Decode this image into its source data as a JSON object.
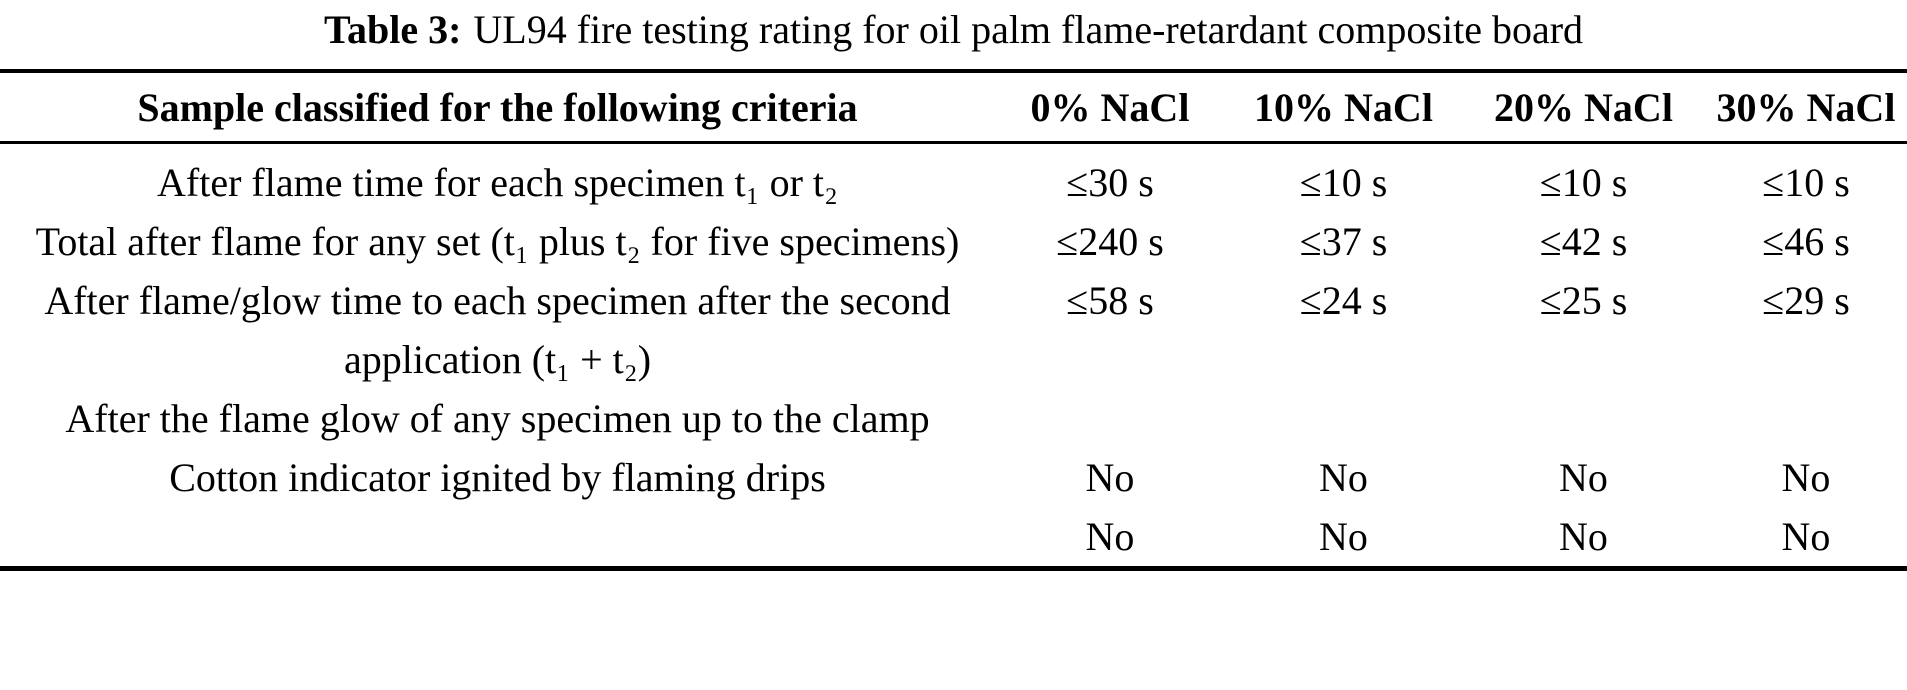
{
  "caption": {
    "label": "Table 3:",
    "text": "UL94 fire testing rating for oil palm flame-retardant composite board"
  },
  "table": {
    "columns": [
      "Sample classified for the following criteria",
      "0% NaCl",
      "10% NaCl",
      "20% NaCl",
      "30% NaCl"
    ],
    "rows": [
      {
        "criteria": "After flame time for each specimen t₁ or t₂",
        "values": [
          "≤30 s",
          "≤10 s",
          "≤10 s",
          "≤10 s"
        ]
      },
      {
        "criteria": "Total after flame for any set (t₁ plus t₂ for five specimens)",
        "values": [
          "≤240 s",
          "≤37 s",
          "≤42 s",
          "≤46 s"
        ]
      },
      {
        "criteria": "After flame/glow time to each specimen after the second application (t₁ + t₂)",
        "values": [
          "≤58 s",
          "≤24 s",
          "≤25 s",
          "≤29 s"
        ]
      },
      {
        "criteria": "After the flame glow of any specimen up to the clamp",
        "values": [
          "",
          "",
          "",
          ""
        ]
      },
      {
        "criteria": "Cotton indicator ignited by flaming drips",
        "values": [
          "No",
          "No",
          "No",
          "No"
        ]
      },
      {
        "criteria": "",
        "values": [
          "No",
          "No",
          "No",
          "No"
        ]
      }
    ],
    "text_color": "#000000",
    "background_color": "#ffffff"
  }
}
